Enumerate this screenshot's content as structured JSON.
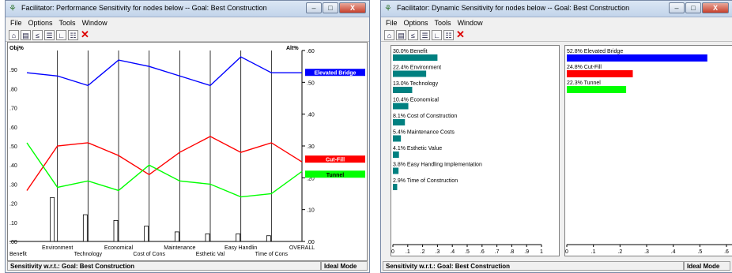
{
  "left": {
    "title": "Facilitator: Performance Sensitivity for nodes below -- Goal: Best Construction",
    "menu": [
      "File",
      "Options",
      "Tools",
      "Window"
    ],
    "axis_left_label": "Obj%",
    "axis_right_label": "Alt%",
    "left_ticks": [
      ".90",
      ".80",
      ".70",
      ".60",
      ".50",
      ".40",
      ".30",
      ".20",
      ".10",
      ".00"
    ],
    "right_ticks": [
      ".60",
      ".50",
      ".40",
      ".30",
      ".20",
      ".10",
      ".00"
    ],
    "criteria_top": [
      "Environment",
      "Economical",
      "Maintenance",
      "Easy Handlin",
      "OVERALL"
    ],
    "criteria_bottom": [
      "Benefit",
      "Technology",
      "Cost of Cons",
      "Esthetic Val",
      "Time of Cons"
    ],
    "status": "Sensitivity w.r.t.: Goal: Best Construction",
    "mode": "Ideal Mode",
    "colors": {
      "elevated": "#0000ff",
      "cutfill": "#ff0000",
      "tunnel": "#00ff00"
    },
    "chart_data": {
      "type": "line",
      "x": [
        "Benefit",
        "Environment",
        "Technology",
        "Economical",
        "Cost of Cons",
        "Maintenance",
        "Esthetic Val",
        "Easy Handlin",
        "Time of Cons",
        "OVERALL"
      ],
      "series": [
        {
          "name": "Elevated Bridge",
          "values": [
            0.53,
            0.52,
            0.49,
            0.57,
            0.55,
            0.52,
            0.49,
            0.58,
            0.53,
            0.53
          ]
        },
        {
          "name": "Cut-Fill",
          "values": [
            0.16,
            0.3,
            0.31,
            0.27,
            0.21,
            0.28,
            0.33,
            0.28,
            0.31,
            0.25
          ]
        },
        {
          "name": "Tunnel",
          "values": [
            0.31,
            0.17,
            0.19,
            0.16,
            0.24,
            0.19,
            0.18,
            0.14,
            0.15,
            0.22
          ]
        }
      ],
      "bars": [
        0.0,
        0.23,
        0.14,
        0.11,
        0.08,
        0.05,
        0.04,
        0.04,
        0.03,
        0.0
      ],
      "ylim_left": [
        0,
        1
      ],
      "ylim_right": [
        0,
        0.6
      ]
    }
  },
  "right": {
    "title": "Facilitator: Dynamic Sensitivity for nodes below -- Goal: Best Construction",
    "menu": [
      "File",
      "Options",
      "Tools",
      "Window"
    ],
    "status": "Sensitivity w.r.t.: Goal: Best Construction",
    "mode": "Ideal Mode",
    "criteria_ticks": [
      "0",
      ".1",
      ".2",
      ".3",
      ".4",
      ".5",
      ".6",
      ".7",
      ".8",
      ".9",
      "1"
    ],
    "alt_ticks": [
      "0",
      ".1",
      ".2",
      ".3",
      ".4",
      ".5",
      ".6"
    ],
    "criteria_chart": {
      "type": "bar",
      "labels": [
        "30.0% Benefit",
        "22.4% Environment",
        "13.0% Technology",
        "10.4% Economical",
        "8.1% Cost of Construction",
        "5.4% Maintenance Costs",
        "4.1% Esthetic Value",
        "3.8% Easy Handling Implementation",
        "2.9% Time of Construction"
      ],
      "values": [
        0.3,
        0.224,
        0.13,
        0.104,
        0.081,
        0.054,
        0.041,
        0.038,
        0.029
      ],
      "xlim": [
        0,
        1
      ],
      "color": "#008080"
    },
    "alternatives_chart": {
      "type": "bar",
      "labels": [
        "52.8% Elevated Bridge",
        "24.8% Cut-Fill",
        "22.3% Tunnel"
      ],
      "values": [
        0.528,
        0.248,
        0.223
      ],
      "xlim": [
        0,
        0.6
      ],
      "colors": [
        "#0000ff",
        "#ff0000",
        "#00ff00"
      ]
    }
  }
}
